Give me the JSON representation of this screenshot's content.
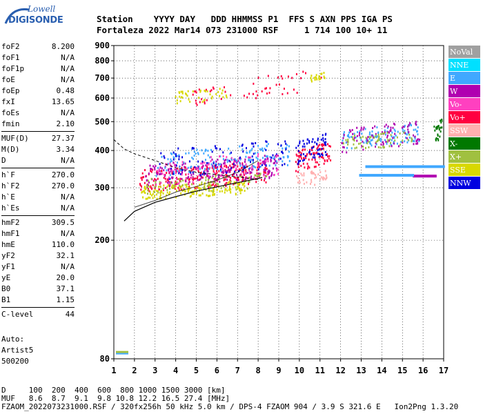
{
  "logo": {
    "line1": "Lowell",
    "line2": "DIGISONDE"
  },
  "header": {
    "line1": "Station    YYYY DAY   DDD HHMMSS P1  FFS S AXN PPS IGA PS",
    "line2": "Fortaleza 2022 Mar14 073 231000 RSF     1 714 100 10+ 11"
  },
  "params": [
    {
      "group": [
        {
          "name": "foF2",
          "value": "8.200"
        },
        {
          "name": "foF1",
          "value": "N/A"
        },
        {
          "name": "foF1p",
          "value": "N/A"
        },
        {
          "name": "foE",
          "value": "N/A"
        },
        {
          "name": "foEp",
          "value": "0.48"
        },
        {
          "name": "fxI",
          "value": "13.65"
        },
        {
          "name": "foEs",
          "value": "N/A"
        },
        {
          "name": "fmin",
          "value": "2.10"
        }
      ]
    },
    {
      "group": [
        {
          "name": "MUF(D)",
          "value": "27.37"
        },
        {
          "name": "M(D)",
          "value": "3.34"
        },
        {
          "name": "D",
          "value": "N/A"
        }
      ]
    },
    {
      "group": [
        {
          "name": "h`F",
          "value": "270.0"
        },
        {
          "name": "h`F2",
          "value": "270.0"
        },
        {
          "name": "h`E",
          "value": "N/A"
        },
        {
          "name": "h`Es",
          "value": "N/A"
        }
      ]
    },
    {
      "group": [
        {
          "name": "hmF2",
          "value": "309.5"
        },
        {
          "name": "hmF1",
          "value": "N/A"
        },
        {
          "name": "hmE",
          "value": "110.0"
        },
        {
          "name": "yF2",
          "value": "32.1"
        },
        {
          "name": "yF1",
          "value": "N/A"
        },
        {
          "name": "yE",
          "value": "20.0"
        },
        {
          "name": "B0",
          "value": "37.1"
        },
        {
          "name": "B1",
          "value": "1.15"
        }
      ]
    },
    {
      "group": [
        {
          "name": "C-level",
          "value": "44"
        }
      ]
    }
  ],
  "auto": {
    "line1": "Auto:",
    "line2": "Artist5",
    "line3": "500200"
  },
  "footer": {
    "line1": "D     100  200  400  600  800 1000 1500 3000 [km]",
    "line2": "MUF   8.6  8.7  9.1  9.8 10.8 12.2 16.5 27.4 [MHz]",
    "line3": "FZAOM_2022073231000.RSF / 320fx256h 50 kHz 5.0 km / DPS-4 FZAOM 904 / 3.9 S 321.6 E   Ion2Png 1.3.20"
  },
  "legend": [
    {
      "label": "NoVal",
      "color": "#a0a0a0"
    },
    {
      "label": "NNE",
      "color": "#00e0ff"
    },
    {
      "label": "E",
      "color": "#40a8ff"
    },
    {
      "label": "W",
      "color": "#b000b0"
    },
    {
      "label": "Vo-",
      "color": "#ff40c0"
    },
    {
      "label": "Vo+",
      "color": "#ff0040"
    },
    {
      "label": "SSW",
      "color": "#ffb0b0"
    },
    {
      "label": "X-",
      "color": "#007800"
    },
    {
      "label": "X+",
      "color": "#a0c040"
    },
    {
      "label": "SSE",
      "color": "#d8d800"
    },
    {
      "label": "NNW",
      "color": "#0000e0"
    }
  ],
  "chart_data": {
    "type": "scatter",
    "xlim": [
      1,
      17
    ],
    "ylim": [
      80,
      900
    ],
    "y_scale": "log",
    "grid": true,
    "x_ticks": [
      "1",
      "2",
      "3",
      "4",
      "5",
      "6",
      "7",
      "8",
      "9",
      "10",
      "11",
      "12",
      "13",
      "14",
      "15",
      "16",
      "17"
    ],
    "y_ticks": [
      {
        "value": 80,
        "label": "80"
      },
      {
        "value": 200,
        "label": "200"
      },
      {
        "value": 300,
        "label": "300"
      },
      {
        "value": 400,
        "label": "400"
      },
      {
        "value": 500,
        "label": "500"
      },
      {
        "value": 600,
        "label": "600"
      },
      {
        "value": 700,
        "label": "700"
      },
      {
        "value": 800,
        "label": "800"
      },
      {
        "value": 900,
        "label": "900"
      }
    ],
    "profile_curve": [
      [
        1.5,
        232
      ],
      [
        2,
        250
      ],
      [
        3,
        268
      ],
      [
        4,
        280
      ],
      [
        5,
        292
      ],
      [
        6,
        302
      ],
      [
        7,
        312
      ],
      [
        8,
        322
      ],
      [
        8.2,
        325
      ]
    ],
    "trace_curve": [
      [
        2,
        258
      ],
      [
        3,
        272
      ],
      [
        4,
        290
      ],
      [
        5,
        303
      ],
      [
        6,
        318
      ],
      [
        7,
        338
      ],
      [
        8,
        370
      ]
    ],
    "dashed_curve": [
      [
        1,
        435
      ],
      [
        1.5,
        405
      ],
      [
        2,
        390
      ],
      [
        3,
        370
      ],
      [
        4,
        350
      ],
      [
        5,
        338
      ],
      [
        6,
        332
      ],
      [
        7,
        326
      ],
      [
        8,
        320
      ]
    ],
    "clusters": [
      {
        "color": "#ff0040",
        "x": [
          2.2,
          8.5
        ],
        "y": [
          290,
          370
        ],
        "n": 260
      },
      {
        "color": "#b000b0",
        "x": [
          2.5,
          9.0
        ],
        "y": [
          300,
          390
        ],
        "n": 220
      },
      {
        "color": "#d8d800",
        "x": [
          2.3,
          7.5
        ],
        "y": [
          275,
          320
        ],
        "n": 160
      },
      {
        "color": "#40a8ff",
        "x": [
          3.0,
          9.5
        ],
        "y": [
          330,
          430
        ],
        "n": 140
      },
      {
        "color": "#0000e0",
        "x": [
          3.0,
          9.5
        ],
        "y": [
          320,
          440
        ],
        "n": 90
      },
      {
        "color": "#a0c040",
        "x": [
          2.5,
          8.5
        ],
        "y": [
          285,
          340
        ],
        "n": 80
      },
      {
        "color": "#ff40c0",
        "x": [
          3.0,
          9.0
        ],
        "y": [
          300,
          400
        ],
        "n": 90
      },
      {
        "color": "#ff0040",
        "x": [
          9.8,
          11.5
        ],
        "y": [
          340,
          430
        ],
        "n": 90
      },
      {
        "color": "#0000e0",
        "x": [
          9.8,
          11.3
        ],
        "y": [
          360,
          460
        ],
        "n": 60
      },
      {
        "color": "#ffb0b0",
        "x": [
          9.8,
          11.3
        ],
        "y": [
          300,
          350
        ],
        "n": 40
      },
      {
        "color": "#40a8ff",
        "x": [
          12.0,
          15.8
        ],
        "y": [
          400,
          500
        ],
        "n": 110
      },
      {
        "color": "#b000b0",
        "x": [
          12.0,
          15.8
        ],
        "y": [
          390,
          510
        ],
        "n": 90
      },
      {
        "color": "#a0c040",
        "x": [
          12.0,
          15.5
        ],
        "y": [
          400,
          470
        ],
        "n": 60
      },
      {
        "color": "#007800",
        "x": [
          16.5,
          16.9
        ],
        "y": [
          420,
          520
        ],
        "n": 25
      },
      {
        "color": "#ff0040",
        "x": [
          4.8,
          8.2
        ],
        "y": [
          570,
          680
        ],
        "n": 30
      },
      {
        "color": "#d8d800",
        "x": [
          3.8,
          6.5
        ],
        "y": [
          570,
          660
        ],
        "n": 40
      },
      {
        "color": "#ff0040",
        "x": [
          7.8,
          11.2
        ],
        "y": [
          600,
          760
        ],
        "n": 25
      },
      {
        "color": "#d8d800",
        "x": [
          10.5,
          11.2
        ],
        "y": [
          680,
          740
        ],
        "n": 20
      }
    ],
    "bands": [
      {
        "color": "#40a8ff",
        "x": [
          13.2,
          17.0
        ],
        "y": 355
      },
      {
        "color": "#b000b0",
        "x": [
          15.5,
          16.6
        ],
        "y": 330
      },
      {
        "color": "#40a8ff",
        "x": [
          12.9,
          15.5
        ],
        "y": 332
      }
    ]
  }
}
